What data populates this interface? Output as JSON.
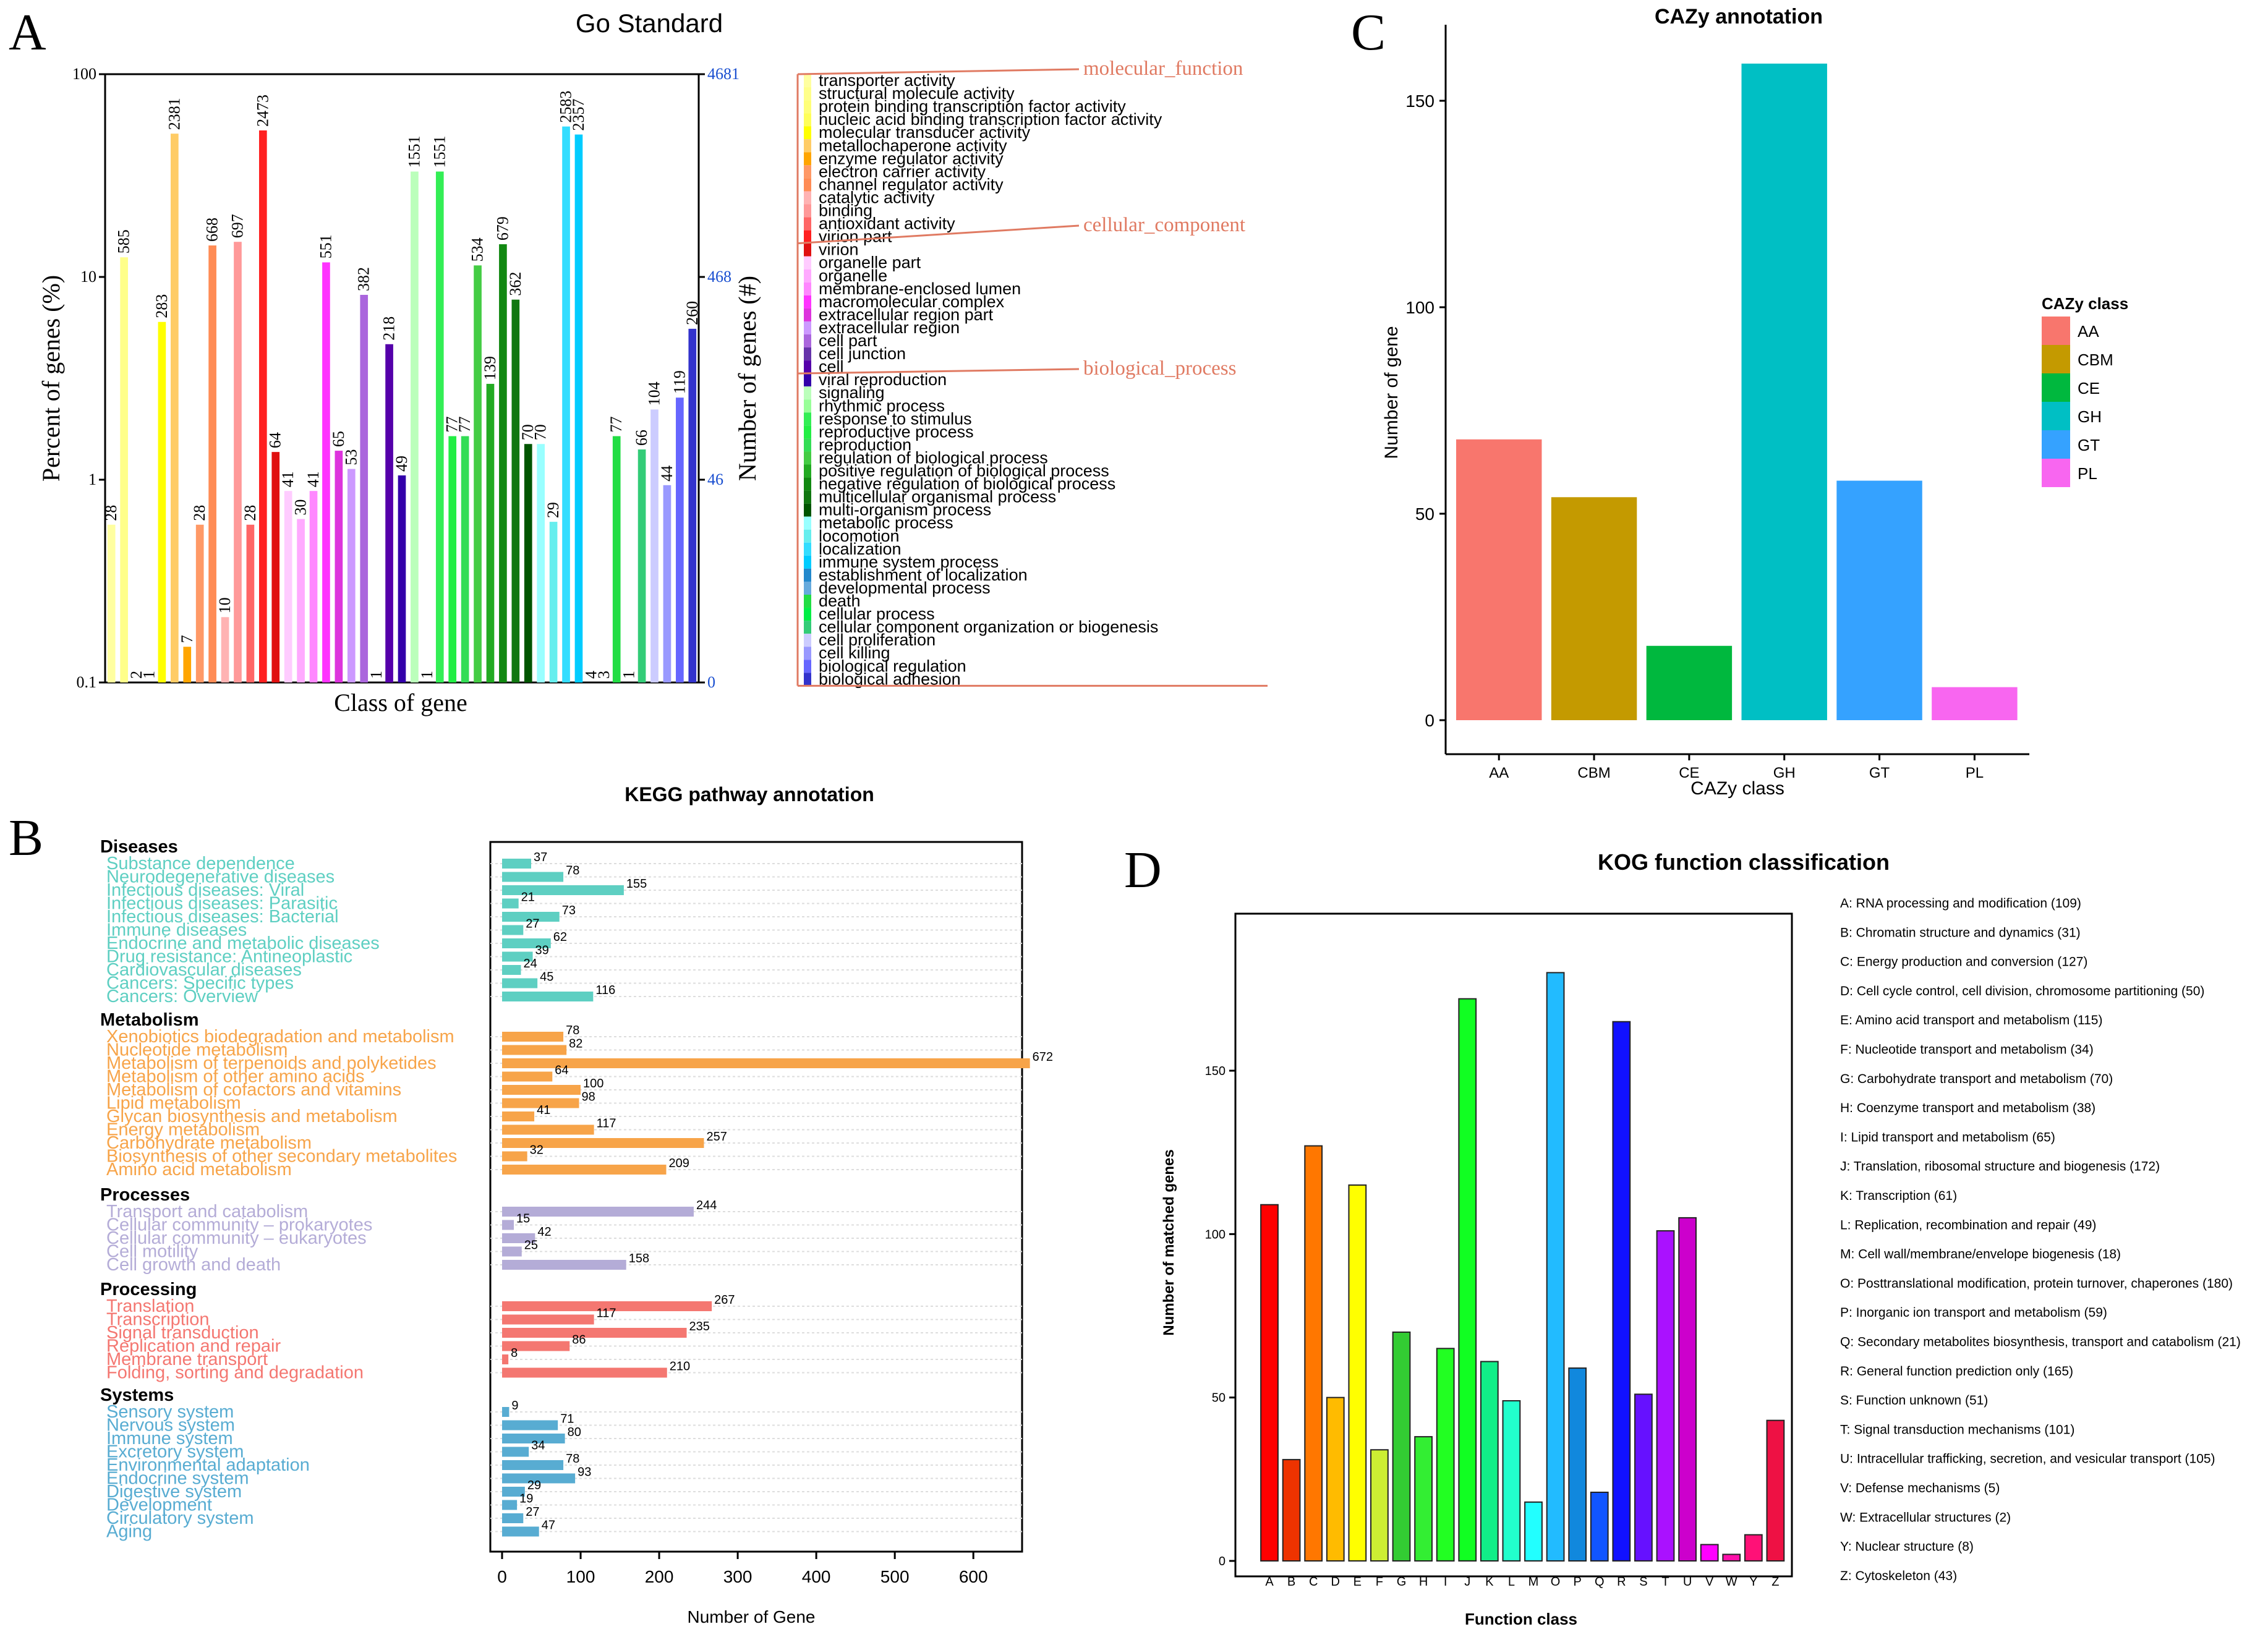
{
  "chart_data": [
    {
      "panel": "A",
      "type": "bar",
      "title": "Go Standard",
      "xlabel": "Class of gene",
      "ylabel": "Percent of genes (%)",
      "ylabel_right": "Number of genes (#)",
      "y_scale": "log",
      "ylim": [
        0.1,
        100
      ],
      "left_ticks": [
        "100",
        "10",
        "1",
        "0.1"
      ],
      "right_ticks": [
        "4681",
        "468",
        "46",
        "0"
      ],
      "groups": [
        {
          "name": "molecular_function",
          "count": 13
        },
        {
          "name": "cellular_component",
          "count": 10
        },
        {
          "name": "biological_process",
          "count": 24
        }
      ],
      "categories": [
        "transporter activity",
        "structural molecule activity",
        "protein binding transcription factor activity",
        "nucleic acid binding transcription factor activity",
        "molecular transducer activity",
        "metallochaperone activity",
        "enzyme regulator activity",
        "electron carrier activity",
        "channel regulator activity",
        "catalytic activity",
        "binding",
        "antioxidant activity",
        "virion part",
        "virion",
        "organelle part",
        "organelle",
        "membrane-enclosed lumen",
        "macromolecular complex",
        "extracellular region part",
        "extracellular region",
        "cell part",
        "cell junction",
        "cell",
        "viral reproduction",
        "signaling",
        "rhythmic process",
        "response to stimulus",
        "reproductive process",
        "reproduction",
        "regulation of biological process",
        "positive regulation of biological process",
        "negative regulation of biological process",
        "multicellular organismal process",
        "multi-organism process",
        "metabolic process",
        "locomotion",
        "localization",
        "immune system process",
        "establishment of localization",
        "developmental process",
        "death",
        "cellular process",
        "cellular component organization or biogenesis",
        "cell proliferation",
        "cell killing",
        "biological regulation",
        "biological adhesion"
      ],
      "bar_labels": [
        "28",
        "585",
        "2",
        "1",
        "283",
        "2381",
        "7",
        "28",
        "668",
        "10",
        "697",
        "28",
        "2473",
        "64",
        "41",
        "30",
        "41",
        "551",
        "65",
        "53",
        "382",
        "1",
        "218",
        "49",
        "1551",
        "1",
        "1551",
        "77",
        "77",
        "534",
        "139",
        "679",
        "362",
        "70",
        "70",
        "29",
        "2583",
        "2357",
        "4",
        "3",
        "77",
        "1",
        "66",
        "104",
        "44",
        "119",
        "260"
      ],
      "values": [
        0.6,
        12.5,
        0.1,
        0.1,
        6.0,
        50.9,
        0.15,
        0.6,
        14.3,
        0.21,
        14.9,
        0.6,
        52.8,
        1.37,
        0.88,
        0.64,
        0.88,
        11.8,
        1.39,
        1.13,
        8.16,
        0.1,
        4.66,
        1.05,
        33.1,
        0.1,
        33.1,
        1.64,
        1.64,
        11.4,
        2.97,
        14.5,
        7.73,
        1.5,
        1.5,
        0.62,
        55.2,
        50.4,
        0.1,
        0.1,
        1.64,
        0.1,
        1.41,
        2.22,
        0.94,
        2.54,
        5.55
      ],
      "colors": [
        "#ffffa0",
        "#ffff8a",
        "#ffff78",
        "#ffff5a",
        "#ffff00",
        "#ffcc66",
        "#ffa500",
        "#ff9966",
        "#ff8c55",
        "#ffb3b3",
        "#ff9999",
        "#ff6666",
        "#ff2020",
        "#e01010",
        "#ffccff",
        "#ffaaff",
        "#ff88ff",
        "#ff33ff",
        "#dd33dd",
        "#cc99ff",
        "#aa66dd",
        "#6633aa",
        "#5500aa",
        "#3300aa",
        "#bbffbb",
        "#99ff99",
        "#33ee55",
        "#22ee44",
        "#33dd55",
        "#44cc44",
        "#22aa22",
        "#118811",
        "#117711",
        "#005500",
        "#99ffff",
        "#66eeee",
        "#33ddff",
        "#00ccff",
        "#2288cc",
        "#66aadd",
        "#22dd44",
        "#00ee44",
        "#33cc77",
        "#ccccff",
        "#9999ff",
        "#6666ff",
        "#3333cc"
      ]
    },
    {
      "panel": "B",
      "type": "bar",
      "orientation": "horizontal",
      "title": "KEGG pathway annotation",
      "xlabel": "Number of Gene",
      "xlim": [
        0,
        680
      ],
      "x_ticks": [
        "0",
        "100",
        "200",
        "300",
        "400",
        "500",
        "600"
      ],
      "groups": [
        {
          "name": "Diseases",
          "color": "#5ecfc2",
          "items": [
            [
              "Substance dependence",
              37
            ],
            [
              "Neurodegenerative diseases",
              78
            ],
            [
              "Infectious diseases: Viral",
              155
            ],
            [
              "Infectious diseases: Parasitic",
              21
            ],
            [
              "Infectious diseases: Bacterial",
              73
            ],
            [
              "Immune diseases",
              27
            ],
            [
              "Endocrine and metabolic diseases",
              62
            ],
            [
              "Drug resistance: Antineoplastic",
              39
            ],
            [
              "Cardiovascular diseases",
              24
            ],
            [
              "Cancers: Specific types",
              45
            ],
            [
              "Cancers: Overview",
              116
            ]
          ]
        },
        {
          "name": "Metabolism",
          "color": "#f7a449",
          "items": [
            [
              "Xenobiotics biodegradation and metabolism",
              78
            ],
            [
              "Nucleotide metabolism",
              82
            ],
            [
              "Metabolism of terpenoids and polyketides",
              672
            ],
            [
              "Metabolism of other amino acids",
              64
            ],
            [
              "Metabolism of cofactors and vitamins",
              100
            ],
            [
              "Lipid metabolism",
              98
            ],
            [
              "Glycan biosynthesis and metabolism",
              41
            ],
            [
              "Energy metabolism",
              117
            ],
            [
              "Carbohydrate metabolism",
              257
            ],
            [
              "Biosynthesis of other secondary metabolites",
              32
            ],
            [
              "Amino acid metabolism",
              209
            ]
          ]
        },
        {
          "name": "Processes",
          "color": "#b4acd7",
          "items": [
            [
              "Transport and catabolism",
              244
            ],
            [
              "Cellular community – prokaryotes",
              15
            ],
            [
              "Cellular community – eukaryotes",
              42
            ],
            [
              "Cell motility",
              25
            ],
            [
              "Cell growth and death",
              158
            ]
          ]
        },
        {
          "name": "Processing",
          "color": "#f47771",
          "items": [
            [
              "Translation",
              267
            ],
            [
              "Transcription",
              117
            ],
            [
              "Signal transduction",
              235
            ],
            [
              "Replication and repair",
              86
            ],
            [
              "Membrane transport",
              8
            ],
            [
              "Folding, sorting and degradation",
              210
            ]
          ]
        },
        {
          "name": "Systems",
          "color": "#58acd2",
          "items": [
            [
              "Sensory system",
              9
            ],
            [
              "Nervous system",
              71
            ],
            [
              "Immune system",
              80
            ],
            [
              "Excretory system",
              34
            ],
            [
              "Environmental adaptation",
              78
            ],
            [
              "Endocrine system",
              93
            ],
            [
              "Digestive system",
              29
            ],
            [
              "Development",
              19
            ],
            [
              "Circulatory system",
              27
            ],
            [
              "Aging",
              47
            ]
          ]
        }
      ]
    },
    {
      "panel": "C",
      "type": "bar",
      "title": "CAZy annotation",
      "xlabel": "CAZy class",
      "ylabel": "Number of gene",
      "ylim": [
        0,
        160
      ],
      "y_ticks": [
        "0",
        "50",
        "100",
        "150"
      ],
      "legend_title": "CAZy class",
      "categories": [
        "AA",
        "CBM",
        "CE",
        "GH",
        "GT",
        "PL"
      ],
      "values": [
        68,
        54,
        18,
        159,
        58,
        8
      ],
      "colors": [
        "#f8766d",
        "#c49a00",
        "#00b83e",
        "#00bfc4",
        "#35a2ff",
        "#f866f0"
      ]
    },
    {
      "panel": "D",
      "type": "bar",
      "title": "KOG function classification",
      "xlabel": "Function class",
      "ylabel": "Number of matched genes",
      "ylim": [
        0,
        190
      ],
      "y_ticks": [
        "0",
        "50",
        "100",
        "150"
      ],
      "categories": [
        "A",
        "B",
        "C",
        "D",
        "E",
        "F",
        "G",
        "H",
        "I",
        "J",
        "K",
        "L",
        "M",
        "O",
        "P",
        "Q",
        "R",
        "S",
        "T",
        "U",
        "V",
        "W",
        "Y",
        "Z"
      ],
      "values": [
        109,
        31,
        127,
        50,
        115,
        34,
        70,
        38,
        65,
        172,
        61,
        49,
        18,
        180,
        59,
        21,
        165,
        51,
        101,
        105,
        5,
        2,
        8,
        43
      ],
      "colors": [
        "#ff0000",
        "#ee3300",
        "#ff7700",
        "#ffbb00",
        "#ffff00",
        "#ccee33",
        "#33cc33",
        "#33ee33",
        "#22ff22",
        "#11ff22",
        "#11ee88",
        "#22ffcc",
        "#22ffff",
        "#22bbff",
        "#1188dd",
        "#1155ff",
        "#1111ff",
        "#6611ff",
        "#aa11ff",
        "#cc00cc",
        "#ff00ff",
        "#ff11aa",
        "#ff1177",
        "#ee1144"
      ],
      "legend": [
        "A: RNA processing and modification  (109)",
        "B: Chromatin structure and dynamics  (31)",
        "C: Energy production and conversion  (127)",
        "D: Cell cycle control, cell division, chromosome partitioning  (50)",
        "E: Amino acid transport and metabolism  (115)",
        "F: Nucleotide transport and metabolism  (34)",
        "G: Carbohydrate transport and metabolism  (70)",
        "H: Coenzyme transport and metabolism  (38)",
        "I: Lipid transport and metabolism  (65)",
        "J: Translation, ribosomal structure and biogenesis  (172)",
        "K: Transcription  (61)",
        "L: Replication, recombination and repair  (49)",
        "M: Cell wall/membrane/envelope biogenesis  (18)",
        "O: Posttranslational modification, protein turnover, chaperones  (180)",
        "P: Inorganic ion transport and metabolism  (59)",
        "Q: Secondary metabolites biosynthesis, transport and catabolism  (21)",
        "R: General function prediction only  (165)",
        "S: Function unknown  (51)",
        "T: Signal transduction mechanisms  (101)",
        "U: Intracellular trafficking, secretion, and vesicular transport  (105)",
        "V: Defense mechanisms  (5)",
        "W: Extracellular structures  (2)",
        "Y: Nuclear structure  (8)",
        "Z: Cytoskeleton  (43)"
      ]
    }
  ],
  "panel_letters": [
    "A",
    "B",
    "C",
    "D"
  ]
}
